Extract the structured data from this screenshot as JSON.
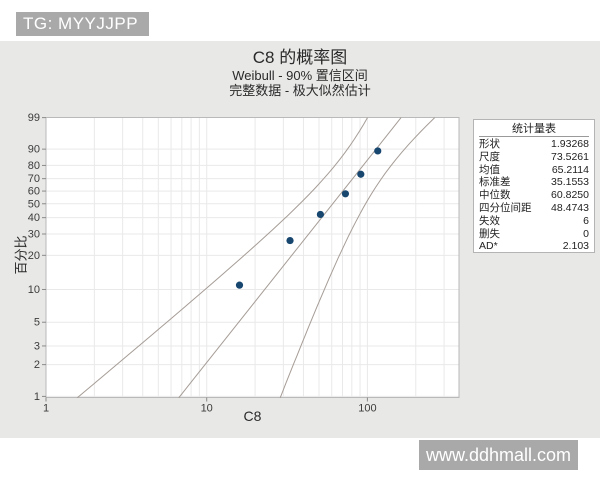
{
  "badge_top": "TG: MYYJJPP",
  "watermark": "www.ddhmall.com",
  "chart": {
    "title": "C8 的概率图",
    "subtitle1": "Weibull - 90% 置信区间",
    "subtitle2": "完整数据 - 极大似然估计",
    "x_label": "C8",
    "y_label": "百分比"
  },
  "stats_table": {
    "header": "统计量表",
    "rows": [
      {
        "label": "形状",
        "value": "1.93268"
      },
      {
        "label": "尺度",
        "value": "73.5261"
      },
      {
        "label": "均值",
        "value": "65.2114"
      },
      {
        "label": "标准差",
        "value": "35.1553"
      },
      {
        "label": "中位数",
        "value": "60.8250"
      },
      {
        "label": "四分位间距",
        "value": "48.4743"
      },
      {
        "label": "失效",
        "value": "6"
      },
      {
        "label": "删失",
        "value": "0"
      },
      {
        "label": "AD*",
        "value": "2.103"
      }
    ]
  },
  "chart_data": {
    "type": "scatter",
    "title": "C8 的概率图",
    "subtitle": [
      "Weibull - 90% 置信区间",
      "完整数据 - 极大似然估计"
    ],
    "xlabel": "C8",
    "ylabel": "百分比",
    "x_scale": "log10",
    "y_scale": "weibull-percent",
    "x_ticks": [
      1,
      10,
      100
    ],
    "x_range": [
      1,
      371
    ],
    "y_ticks": [
      99,
      90,
      80,
      70,
      60,
      50,
      40,
      30,
      20,
      10,
      5,
      3,
      2,
      1
    ],
    "y_range_percent": [
      1,
      99
    ],
    "points": [
      {
        "x": 16,
        "percent": 10.94
      },
      {
        "x": 33,
        "percent": 26.56
      },
      {
        "x": 51,
        "percent": 42.19
      },
      {
        "x": 73,
        "percent": 57.81
      },
      {
        "x": 91,
        "percent": 73.44
      },
      {
        "x": 116,
        "percent": 89.06
      }
    ],
    "fit": {
      "distribution": "Weibull",
      "shape": 1.93268,
      "scale": 73.5261,
      "n": 6,
      "ci_percent": 90
    },
    "grid": true,
    "legend": "none",
    "colors": {
      "point": "#17466f",
      "line": "#a59c96",
      "grid": "#e9e9e9",
      "frame": "#b9b9b9",
      "tick": "#8a8a8a",
      "label": "#3c3c3c"
    }
  }
}
